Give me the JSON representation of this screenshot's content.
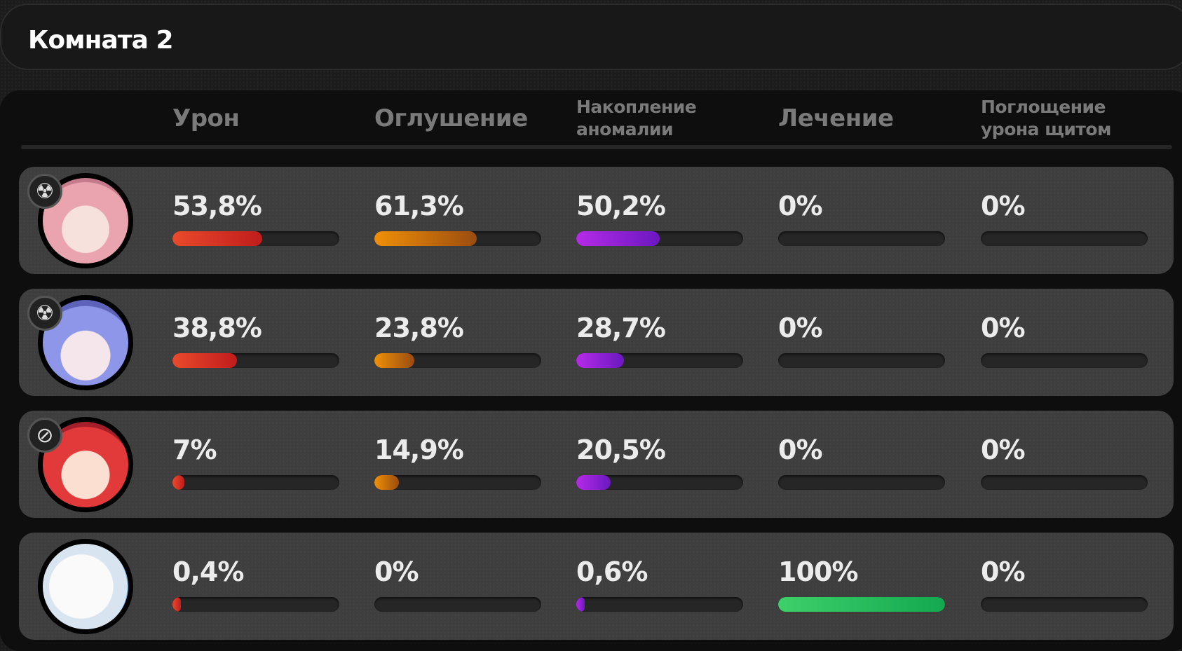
{
  "title": "Комната 2",
  "columns": [
    "Урон",
    "Оглушение",
    "Накопление аномалии",
    "Лечение",
    "Поглощение урона щитом"
  ],
  "colors": {
    "damage": "#e03a24",
    "stun": "#e8860a",
    "anomaly": "#a01fd8",
    "healing": "#2ec863",
    "shield": "#2ec863"
  },
  "rows": [
    {
      "avatar": "pink-haired-glasses-character",
      "badge": "radiation-icon",
      "values": [
        "53,8%",
        "61,3%",
        "50,2%",
        "0%",
        "0%"
      ],
      "pct": [
        53.8,
        61.3,
        50.2,
        0,
        0
      ]
    },
    {
      "avatar": "blue-haired-character",
      "badge": "radiation-icon",
      "values": [
        "38,8%",
        "23,8%",
        "28,7%",
        "0%",
        "0%"
      ],
      "pct": [
        38.8,
        23.8,
        28.7,
        0,
        0
      ]
    },
    {
      "avatar": "red-haired-character",
      "badge": "slash-icon",
      "values": [
        "7%",
        "14,9%",
        "20,5%",
        "0%",
        "0%"
      ],
      "pct": [
        7,
        14.9,
        20.5,
        0,
        0
      ]
    },
    {
      "avatar": "white-bangboo-character",
      "badge": "",
      "values": [
        "0,4%",
        "0%",
        "0,6%",
        "100%",
        "0%"
      ],
      "pct": [
        0.4,
        0,
        0.6,
        100,
        0
      ]
    }
  ]
}
